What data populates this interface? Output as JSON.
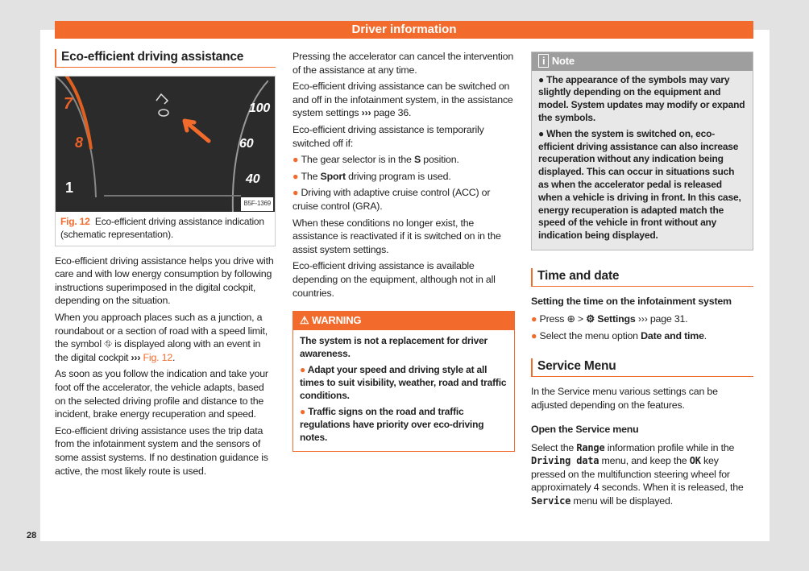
{
  "header": {
    "title": "Driver information"
  },
  "page_number": "28",
  "left": {
    "heading": "Eco-efficient driving assistance",
    "figure": {
      "code": "B5F-1369",
      "label": "Fig. 12",
      "caption": "Eco-efficient driving assistance indication (schematic representation).",
      "gauge_left": [
        "7",
        "8",
        "1"
      ],
      "gauge_right": [
        "100",
        "60",
        "40"
      ]
    },
    "paragraphs": [
      [
        {
          "t": "Eco-efficient driving assistance helps you drive with care and with low energy consumption by following instructions superimposed in the digital cockpit, depending on the situation."
        }
      ],
      [
        {
          "t": "When you approach places such as a junction, a roundabout or a section of road with a speed limit, the symbol ⛗ is displayed along with an event in the digital cockpit "
        },
        {
          "t": "›››",
          "c": "b"
        },
        {
          "t": " Fig. 12",
          "c": "o"
        },
        {
          "t": "."
        }
      ],
      [
        {
          "t": "As soon as you follow the indication and take your foot off the accelerator, the vehicle adapts, based on the selected driving profile and distance to the incident, brake energy recuperation and speed."
        }
      ],
      [
        {
          "t": "Eco-efficient driving assistance uses the trip data from the infotainment system and the sensors of some assist systems. If no destination guidance is active, the most likely route is used."
        }
      ]
    ]
  },
  "middle": {
    "paragraphs": [
      [
        {
          "t": "Pressing the accelerator can cancel the intervention of the assistance at any time."
        }
      ],
      [
        {
          "t": "Eco-efficient driving assistance can be switched on and off in the infotainment system, in the assistance system settings "
        },
        {
          "t": "›››",
          "c": "b"
        },
        {
          "t": " page 36."
        }
      ],
      [
        {
          "t": "Eco-efficient driving assistance is temporarily switched off if:"
        }
      ],
      [
        {
          "t": "● ",
          "c": "dot"
        },
        {
          "t": "The gear selector is in the "
        },
        {
          "t": "S",
          "c": "b"
        },
        {
          "t": " position."
        }
      ],
      [
        {
          "t": "● ",
          "c": "dot"
        },
        {
          "t": "The "
        },
        {
          "t": "Sport",
          "c": "b"
        },
        {
          "t": " driving program is used."
        }
      ],
      [
        {
          "t": "● ",
          "c": "dot"
        },
        {
          "t": "Driving with adaptive cruise control (ACC) or cruise control (GRA)."
        }
      ],
      [
        {
          "t": "When these conditions no longer exist, the assistance is reactivated if it is switched on in the assist system settings."
        }
      ],
      [
        {
          "t": "Eco-efficient driving assistance is available depending on the equipment, although not in all countries."
        }
      ]
    ],
    "warning": {
      "title": "WARNING",
      "paragraphs": [
        [
          {
            "t": "The system is not a replacement for driver awareness."
          }
        ],
        [
          {
            "t": "● ",
            "c": "dot"
          },
          {
            "t": "Adapt your speed and driving style at all times to suit visibility, weather, road and traffic conditions."
          }
        ],
        [
          {
            "t": "● ",
            "c": "dot"
          },
          {
            "t": "Traffic signs on the road and traffic regulations have priority over eco-driving notes."
          }
        ]
      ]
    }
  },
  "right": {
    "note": {
      "title": "Note",
      "paragraphs": [
        [
          {
            "t": "● The appearance of the symbols may vary slightly depending on the equipment and model. System updates may modify or expand the symbols."
          }
        ],
        [
          {
            "t": "● When the system is switched on, eco-efficient driving assistance can also increase recuperation without any indication being displayed. This can occur in situations such as when the accelerator pedal is released when a vehicle is driving in front. In this case, energy recuperation is adapted match the speed of the vehicle in front without any indication being displayed."
          }
        ]
      ]
    },
    "time": {
      "heading": "Time and date",
      "sub": "Setting the time on the infotainment system",
      "paragraphs": [
        [
          {
            "t": "● ",
            "c": "dot"
          },
          {
            "t": "Press ⊕ > "
          },
          {
            "t": "⚙ Settings",
            "c": "b"
          },
          {
            "t": " ››› page 31."
          }
        ],
        [
          {
            "t": "● ",
            "c": "dot"
          },
          {
            "t": "Select the menu option "
          },
          {
            "t": "Date and time",
            "c": "b"
          },
          {
            "t": "."
          }
        ]
      ]
    },
    "service": {
      "heading": "Service Menu",
      "intro": [
        [
          {
            "t": "In the Service menu various settings can be adjusted depending on the features."
          }
        ]
      ],
      "sub": "Open the Service menu",
      "paragraphs": [
        [
          {
            "t": "Select the "
          },
          {
            "t": "Range",
            "c": "m"
          },
          {
            "t": " information profile while in the "
          },
          {
            "t": "Driving data",
            "c": "m"
          },
          {
            "t": " menu, and keep the "
          },
          {
            "t": "OK",
            "c": "m"
          },
          {
            "t": " key pressed on the multifunction steering wheel for approximately 4 seconds. When it is released, the "
          },
          {
            "t": "Service",
            "c": "m"
          },
          {
            "t": " menu will be displayed."
          }
        ]
      ]
    }
  },
  "colors": {
    "accent": "#f26b2c",
    "note_bg": "#e8e8e8"
  }
}
